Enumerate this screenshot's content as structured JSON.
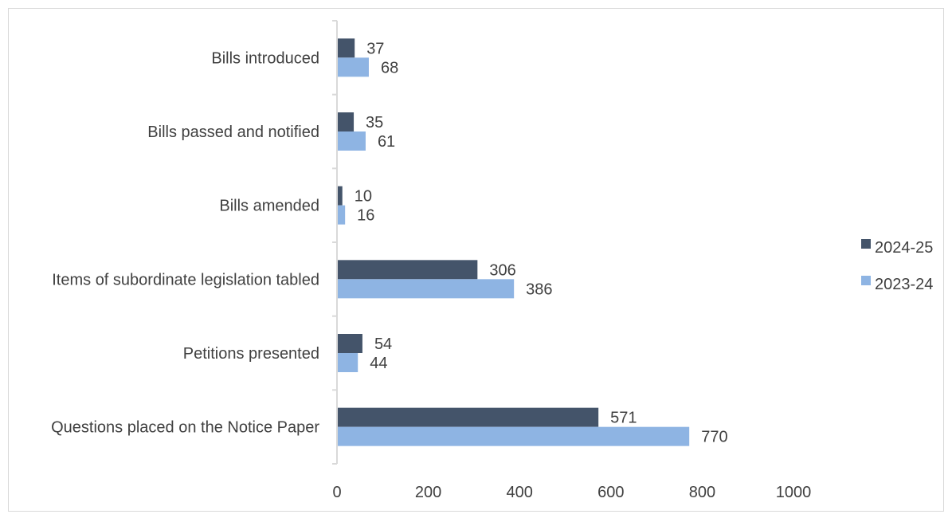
{
  "chart_data": {
    "type": "bar",
    "orientation": "horizontal",
    "categories": [
      "Bills introduced",
      "Bills passed and notified",
      "Bills amended",
      "Items of subordinate legislation tabled",
      "Petitions presented",
      "Questions placed on the Notice Paper"
    ],
    "series": [
      {
        "name": "2024-25",
        "color": "#44546a",
        "values": [
          37,
          35,
          10,
          306,
          54,
          571
        ]
      },
      {
        "name": "2023-24",
        "color": "#8eb4e3",
        "values": [
          68,
          61,
          16,
          386,
          44,
          770
        ]
      }
    ],
    "title": "",
    "xlabel": "",
    "ylabel": "",
    "xlim": [
      0,
      1000
    ],
    "xticks": [
      0,
      200,
      400,
      600,
      800,
      1000
    ],
    "grid": false,
    "legend_position": "right"
  }
}
